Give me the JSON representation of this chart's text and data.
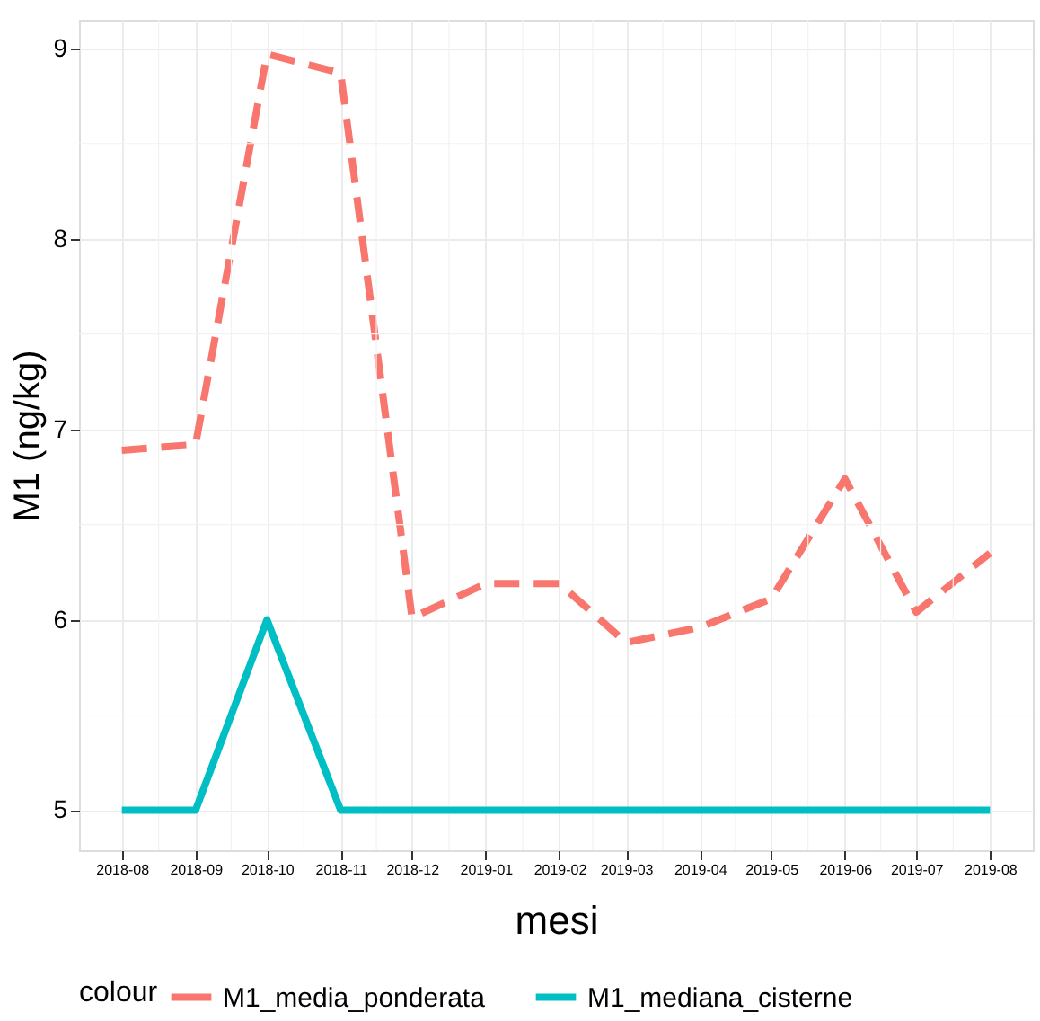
{
  "chart_data": {
    "type": "line",
    "xlabel": "mesi",
    "ylabel": "M1 (ng/kg)",
    "legend_title": "colour",
    "legend": "bottom",
    "grid": true,
    "x": [
      "2018-08",
      "2018-09",
      "2018-10",
      "2018-11",
      "2018-12",
      "2019-01",
      "2019-02",
      "2019-03",
      "2019-04",
      "2019-05",
      "2019-06",
      "2019-07",
      "2019-08"
    ],
    "xlim": [
      "2018-07-14",
      "2019-08-19"
    ],
    "xticks": [
      "2018-08",
      "2018-09",
      "2018-10",
      "2018-11",
      "2018-12",
      "2019-01",
      "2019-02",
      "2019-03",
      "2019-04",
      "2019-05",
      "2019-06",
      "2019-07",
      "2019-08"
    ],
    "ylim": [
      4.79,
      9.15
    ],
    "yticks": [
      5,
      6,
      7,
      8,
      9
    ],
    "series": [
      {
        "name": "M1_media_ponderata",
        "color": "#f8766d",
        "line_style": "dashed",
        "values": [
          6.89,
          6.92,
          8.97,
          8.87,
          6.01,
          6.19,
          6.19,
          5.88,
          5.96,
          6.11,
          6.74,
          6.04,
          6.35
        ]
      },
      {
        "name": "M1_mediana_cisterne",
        "color": "#00bfc4",
        "line_style": "solid",
        "values": [
          5,
          5,
          6,
          5,
          5,
          5,
          5,
          5,
          5,
          5,
          5,
          5,
          5
        ]
      }
    ]
  }
}
